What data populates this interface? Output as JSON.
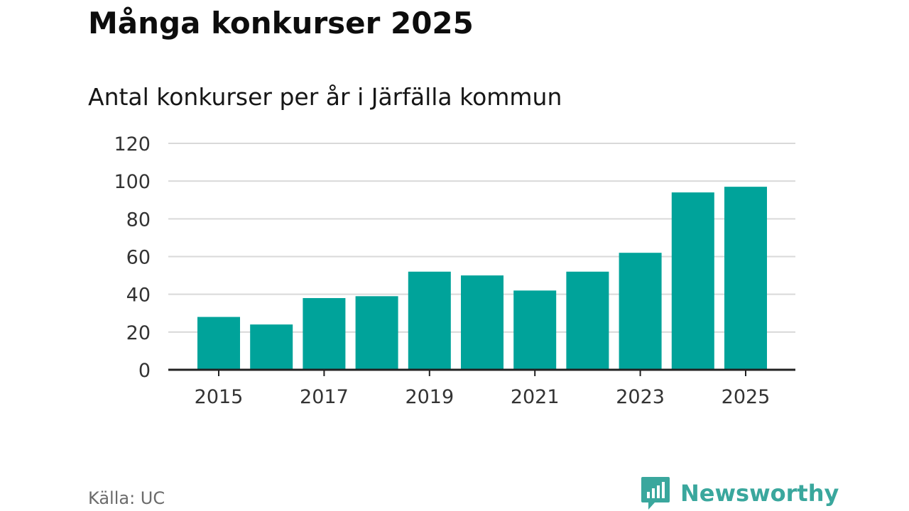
{
  "title": "Många konkurser 2025",
  "subtitle": "Antal konkurser per år i Järfälla kommun",
  "source": "Källa: UC",
  "brand": {
    "name": "Newsworthy",
    "icon": "bar-chart-speech-bubble-icon"
  },
  "colors": {
    "bar": "#00a39a",
    "grid": "#d9d9d9",
    "axis": "#222222",
    "brand": "#3aa79d"
  },
  "chart_data": {
    "type": "bar",
    "title": "Många konkurser 2025",
    "subtitle": "Antal konkurser per år i Järfälla kommun",
    "xlabel": "",
    "ylabel": "",
    "categories": [
      "2015",
      "2016",
      "2017",
      "2018",
      "2019",
      "2020",
      "2021",
      "2022",
      "2023",
      "2024",
      "2025"
    ],
    "values": [
      28,
      24,
      38,
      39,
      52,
      50,
      42,
      52,
      62,
      94,
      97
    ],
    "x_tick_labels": [
      "2015",
      "2017",
      "2019",
      "2021",
      "2023",
      "2025"
    ],
    "y_ticks": [
      0,
      20,
      40,
      60,
      80,
      100,
      120
    ],
    "ylim": [
      0,
      120
    ],
    "grid": true,
    "legend": "none"
  }
}
